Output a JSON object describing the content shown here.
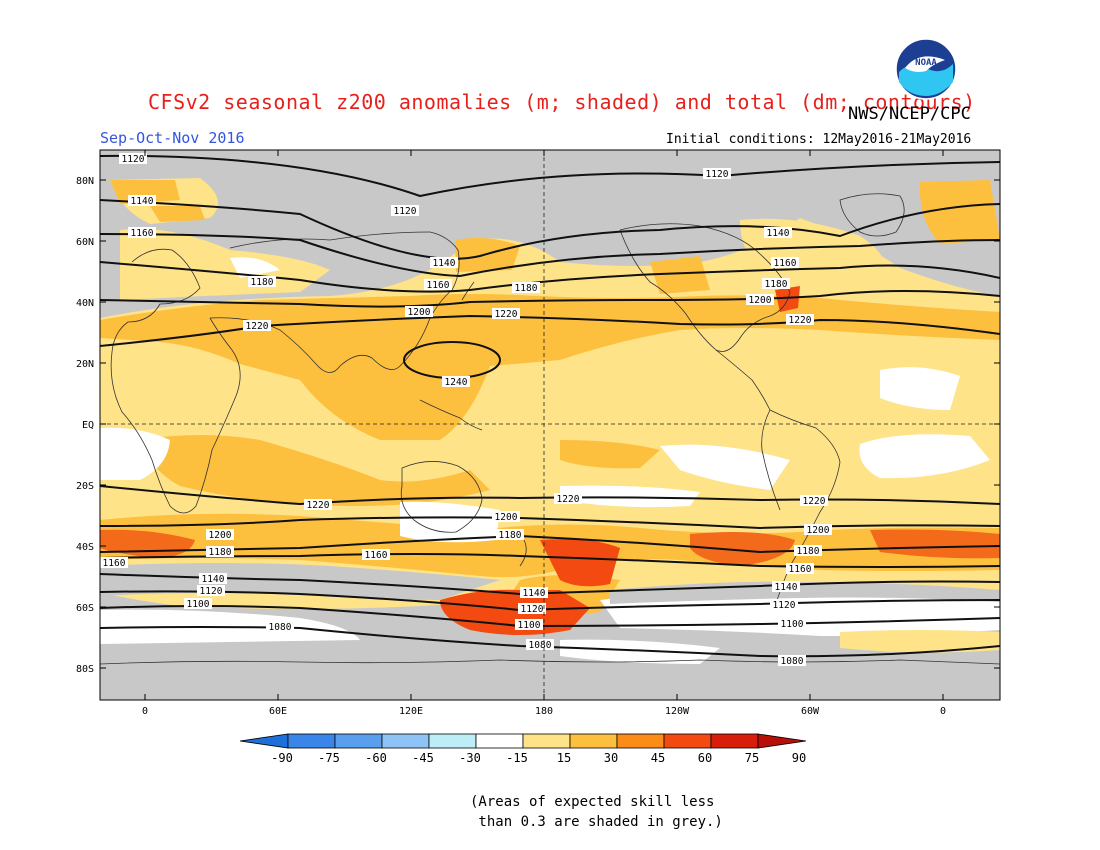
{
  "title": "CFSv2 seasonal z200 anomalies (m; shaded) and total (dm; contours)",
  "agency": "NWS/NCEP/CPC",
  "logo_text": "NOAA",
  "season": "Sep-Oct-Nov 2016",
  "initial_conditions": "Initial conditions: 12May2016-21May2016",
  "skill_note": "(Areas of expected skill less\n than 0.3 are shaded in grey.)",
  "map": {
    "lon_labels": [
      "0",
      "60E",
      "120E",
      "180",
      "120W",
      "60W",
      "0"
    ],
    "lat_labels": [
      "80N",
      "60N",
      "40N",
      "20N",
      "EQ",
      "20S",
      "40S",
      "60S",
      "80S"
    ],
    "contour_labels": [
      "1080",
      "1100",
      "1120",
      "1140",
      "1160",
      "1180",
      "1200",
      "1220",
      "1240"
    ],
    "grey_meaning": "expected skill less than 0.3"
  },
  "colorbar": {
    "ticks": [
      "-90",
      "-75",
      "-60",
      "-45",
      "-30",
      "-15",
      "15",
      "30",
      "45",
      "60",
      "75",
      "90"
    ],
    "colors": [
      "#1e6fd9",
      "#3a86e8",
      "#5a9eee",
      "#8ec3f5",
      "#bdeef7",
      "#ffffff",
      "#fee389",
      "#fdbf3e",
      "#fb8c18",
      "#f24a10",
      "#d91d0b",
      "#b81008"
    ]
  },
  "colors": {
    "grey": "#c8c8c8",
    "ocean_fill": "#fee389",
    "title": "#e8201c",
    "season": "#3355dd"
  }
}
